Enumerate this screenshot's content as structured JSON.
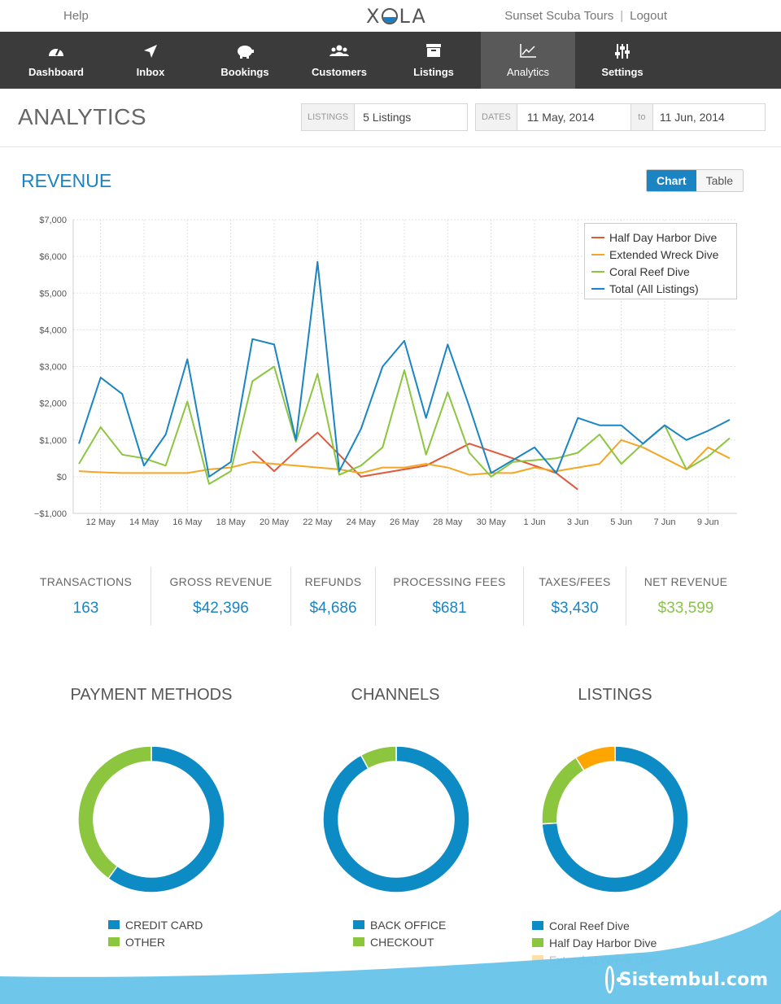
{
  "topbar": {
    "help": "Help",
    "logo": "XOLA",
    "account": "Sunset Scuba Tours",
    "logout": "Logout"
  },
  "nav": {
    "items": [
      {
        "label": "Dashboard",
        "icon": "gauge-icon"
      },
      {
        "label": "Inbox",
        "icon": "arrow-icon"
      },
      {
        "label": "Bookings",
        "icon": "piggy-bank-icon"
      },
      {
        "label": "Customers",
        "icon": "users-icon"
      },
      {
        "label": "Listings",
        "icon": "archive-icon"
      },
      {
        "label": "Analytics",
        "icon": "chart-icon",
        "active": true
      },
      {
        "label": "Settings",
        "icon": "sliders-icon"
      }
    ]
  },
  "header": {
    "title": "ANALYTICS",
    "listings_label": "LISTINGS",
    "listings_value": "5 Listings",
    "dates_label": "DATES",
    "date_from": "11 May, 2014",
    "to_label": "to",
    "date_to": "11 Jun, 2014"
  },
  "revenue": {
    "title": "REVENUE",
    "chart_button": "Chart",
    "table_button": "Table"
  },
  "chart_data": {
    "type": "line",
    "ylim": [
      -1000,
      7000
    ],
    "yticks": [
      -1000,
      0,
      1000,
      2000,
      3000,
      4000,
      5000,
      6000,
      7000
    ],
    "ytick_labels": [
      "−$1,000",
      "$0",
      "$1,000",
      "$2,000",
      "$3,000",
      "$4,000",
      "$5,000",
      "$6,000",
      "$7,000"
    ],
    "x_start": "11 May",
    "xtick_labels": [
      "12 May",
      "14 May",
      "16 May",
      "18 May",
      "20 May",
      "22 May",
      "24 May",
      "26 May",
      "28 May",
      "30 May",
      "1 Jun",
      "3 Jun",
      "5 Jun",
      "7 Jun",
      "9 Jun"
    ],
    "xtick_day_index": [
      1,
      3,
      5,
      7,
      9,
      11,
      13,
      15,
      17,
      19,
      21,
      23,
      25,
      27,
      29
    ],
    "grid": true,
    "legend": "top-right",
    "colors": {
      "half_day": "#dd5a3e",
      "extended": "#f5a623",
      "coral": "#8cc63f",
      "total": "#1a85c2"
    },
    "series": [
      {
        "name": "Half Day Harbor Dive",
        "color": "#dd5a3e",
        "values": [
          null,
          null,
          null,
          null,
          null,
          null,
          null,
          null,
          700,
          150,
          700,
          1200,
          600,
          0,
          100,
          200,
          300,
          600,
          900,
          700,
          500,
          300,
          100,
          -350,
          null,
          null,
          null,
          null,
          null,
          null,
          null
        ]
      },
      {
        "name": "Extended Wreck Dive",
        "color": "#f5a623",
        "values": [
          150,
          120,
          100,
          100,
          100,
          100,
          200,
          250,
          400,
          350,
          300,
          250,
          200,
          100,
          250,
          250,
          350,
          250,
          50,
          100,
          100,
          250,
          150,
          250,
          350,
          1000,
          800,
          500,
          200,
          800,
          500
        ]
      },
      {
        "name": "Coral Reef Dive",
        "color": "#8cc63f",
        "values": [
          350,
          1350,
          600,
          500,
          300,
          2050,
          -200,
          150,
          2600,
          3000,
          950,
          2800,
          50,
          300,
          800,
          2900,
          600,
          2300,
          650,
          0,
          400,
          450,
          500,
          650,
          1150,
          350,
          900,
          1400,
          200,
          550,
          1050
        ]
      },
      {
        "name": "Total (All Listings)",
        "color": "#1a85c2",
        "values": [
          900,
          2700,
          2250,
          300,
          1150,
          3200,
          0,
          400,
          3750,
          3600,
          1000,
          5850,
          150,
          1300,
          3000,
          3700,
          1600,
          3600,
          1900,
          100,
          450,
          800,
          100,
          1600,
          1400,
          1400,
          900,
          1400,
          1000,
          1250,
          1550
        ]
      }
    ]
  },
  "stats": [
    {
      "label": "TRANSACTIONS",
      "value": "163"
    },
    {
      "label": "GROSS REVENUE",
      "value": "$42,396"
    },
    {
      "label": "REFUNDS",
      "value": "$4,686"
    },
    {
      "label": "PROCESSING FEES",
      "value": "$681"
    },
    {
      "label": "TAXES/FEES",
      "value": "$3,430"
    },
    {
      "label": "NET REVENUE",
      "value": "$33,599"
    }
  ],
  "donuts": [
    {
      "title": "PAYMENT METHODS",
      "slices": [
        {
          "label": "CREDIT CARD",
          "value": 60,
          "color": "#0d8bc5"
        },
        {
          "label": "OTHER",
          "value": 40,
          "color": "#8cc63f"
        }
      ]
    },
    {
      "title": "CHANNELS",
      "slices": [
        {
          "label": "BACK OFFICE",
          "value": 92,
          "color": "#0d8bc5"
        },
        {
          "label": "CHECKOUT",
          "value": 8,
          "color": "#8cc63f"
        }
      ]
    },
    {
      "title": "LISTINGS",
      "slices": [
        {
          "label": "Coral Reef Dive",
          "value": 74,
          "color": "#0d8bc5"
        },
        {
          "label": "Half Day Harbor Dive",
          "value": 17,
          "color": "#8cc63f"
        },
        {
          "label": "Extended Wreck Dive",
          "value": 9,
          "color": "#ffa500"
        }
      ]
    }
  ],
  "watermark": "Sistembul.com"
}
